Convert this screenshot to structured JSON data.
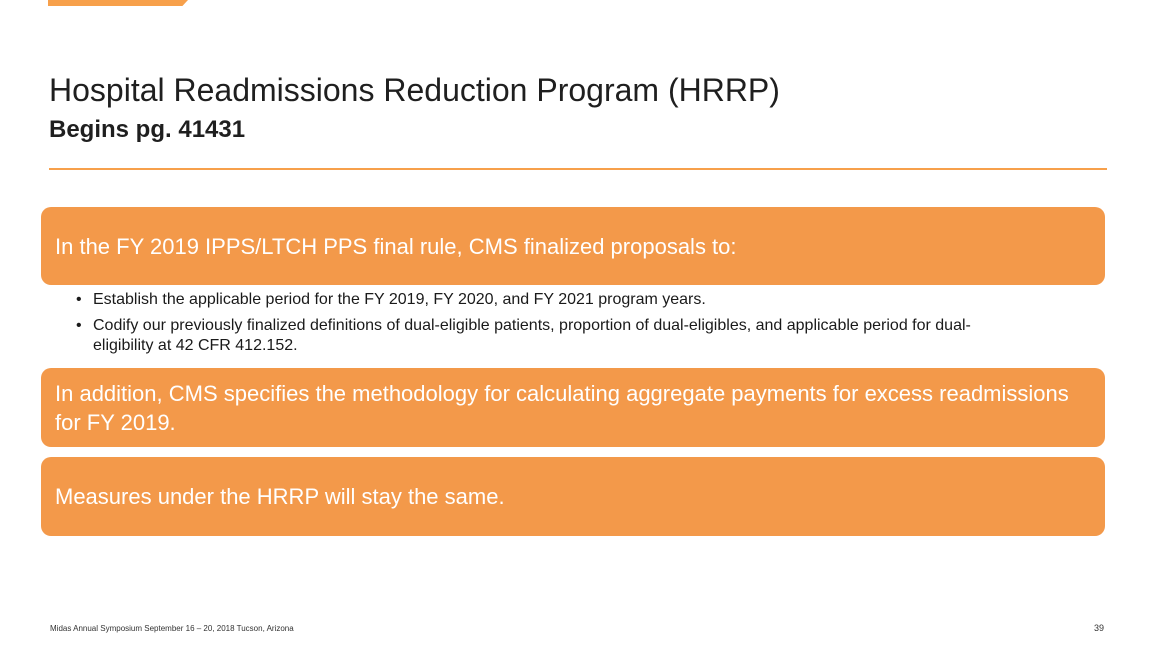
{
  "colors": {
    "accent": "#f3994a",
    "rule": "#f7a04b",
    "box_text": "#ffffff"
  },
  "slide": {
    "title": "Hospital Readmissions Reduction Program (HRRP)",
    "subtitle": "Begins pg. 41431"
  },
  "content": {
    "box1": "In the FY 2019 IPPS/LTCH PPS final rule, CMS finalized proposals to:",
    "bullet_glyph": "•",
    "bullets": [
      "Establish the applicable period for the FY 2019, FY 2020, and FY 2021 program years.",
      "Codify our previously finalized definitions of dual-eligible patients, proportion of dual-eligibles, and applicable period for dual-eligibility at 42 CFR 412.152."
    ],
    "box2": "In addition, CMS specifies the methodology for calculating aggregate payments for excess readmissions for FY 2019.",
    "box3": "Measures under the HRRP will stay the same."
  },
  "footer": {
    "text": "Midas Annual Symposium September 16 – 20, 2018 Tucson, Arizona",
    "page_number": "39"
  }
}
